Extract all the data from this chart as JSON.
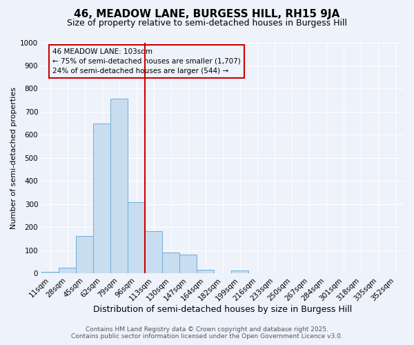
{
  "title": "46, MEADOW LANE, BURGESS HILL, RH15 9JA",
  "subtitle": "Size of property relative to semi-detached houses in Burgess Hill",
  "xlabel": "Distribution of semi-detached houses by size in Burgess Hill",
  "ylabel": "Number of semi-detached properties",
  "footer_line1": "Contains HM Land Registry data © Crown copyright and database right 2025.",
  "footer_line2": "Contains public sector information licensed under the Open Government Licence v3.0.",
  "categories": [
    "11sqm",
    "28sqm",
    "45sqm",
    "62sqm",
    "79sqm",
    "96sqm",
    "113sqm",
    "130sqm",
    "147sqm",
    "164sqm",
    "182sqm",
    "199sqm",
    "216sqm",
    "233sqm",
    "250sqm",
    "267sqm",
    "284sqm",
    "301sqm",
    "318sqm",
    "335sqm",
    "352sqm"
  ],
  "values": [
    5,
    25,
    163,
    648,
    755,
    307,
    183,
    90,
    80,
    15,
    0,
    12,
    0,
    0,
    0,
    0,
    0,
    0,
    0,
    0,
    0
  ],
  "bar_color": "#c9ddf0",
  "bar_edge_color": "#6baed6",
  "vline_color": "#cc0000",
  "vline_index": 6,
  "annotation_title": "46 MEADOW LANE: 103sqm",
  "annotation_line2": "← 75% of semi-detached houses are smaller (1,707)",
  "annotation_line3": "24% of semi-detached houses are larger (544) →",
  "annotation_box_edgecolor": "#cc0000",
  "ylim": [
    0,
    1000
  ],
  "yticks": [
    0,
    100,
    200,
    300,
    400,
    500,
    600,
    700,
    800,
    900,
    1000
  ],
  "background_color": "#eef2fa",
  "grid_color": "#ffffff",
  "title_fontsize": 11,
  "subtitle_fontsize": 9,
  "xlabel_fontsize": 9,
  "ylabel_fontsize": 8,
  "tick_fontsize": 7.5,
  "annotation_fontsize": 7.5,
  "footer_fontsize": 6.5
}
